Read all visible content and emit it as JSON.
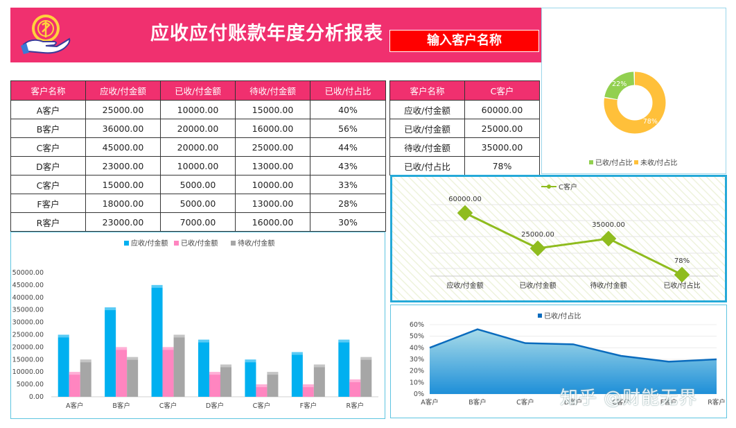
{
  "header": {
    "title": "应收应付账款年度分析报表",
    "customer_input": "输入客户名称"
  },
  "main_table": {
    "columns": [
      "客户名称",
      "应收/付金额",
      "已收/付金额",
      "待收/付金额",
      "已收/付占比"
    ],
    "rows": [
      [
        "A客户",
        "25000.00",
        "10000.00",
        "15000.00",
        "40%"
      ],
      [
        "B客户",
        "36000.00",
        "20000.00",
        "16000.00",
        "56%"
      ],
      [
        "C客户",
        "45000.00",
        "20000.00",
        "25000.00",
        "44%"
      ],
      [
        "D客户",
        "23000.00",
        "10000.00",
        "13000.00",
        "43%"
      ],
      [
        "C客户",
        "15000.00",
        "5000.00",
        "10000.00",
        "33%"
      ],
      [
        "F客户",
        "18000.00",
        "5000.00",
        "13000.00",
        "28%"
      ],
      [
        "R客户",
        "23000.00",
        "7000.00",
        "16000.00",
        "30%"
      ]
    ]
  },
  "side_table": {
    "columns": [
      "客户名称",
      "C客户"
    ],
    "rows": [
      [
        "应收/付金额",
        "60000.00"
      ],
      [
        "已收/付金额",
        "25000.00"
      ],
      [
        "待收/付金额",
        "35000.00"
      ],
      [
        "已收/付占比",
        "78%"
      ]
    ]
  },
  "colors": {
    "header": "#f0306f",
    "input": "#ff0000",
    "bar_receivable": "#00b0f0",
    "bar_received": "#ff85c0",
    "bar_pending": "#a6a6a6",
    "donut_received": "#92d050",
    "donut_unreceived": "#ffc03a",
    "line": "#8fbc1e",
    "area": "#0a6bbd"
  },
  "chart_data": [
    {
      "type": "bar",
      "categories": [
        "A客户",
        "B客户",
        "C客户",
        "D客户",
        "C客户",
        "F客户",
        "R客户"
      ],
      "series": [
        {
          "name": "应收/付金额",
          "values": [
            25000,
            36000,
            45000,
            23000,
            15000,
            18000,
            23000
          ]
        },
        {
          "name": "已收/付金额",
          "values": [
            10000,
            20000,
            20000,
            10000,
            5000,
            5000,
            7000
          ]
        },
        {
          "name": "待收/付金额",
          "values": [
            15000,
            16000,
            25000,
            13000,
            10000,
            13000,
            16000
          ]
        }
      ],
      "ylim": [
        0,
        50000
      ],
      "yticks": [
        "0.00",
        "5000.00",
        "10000.00",
        "15000.00",
        "20000.00",
        "25000.00",
        "30000.00",
        "35000.00",
        "40000.00",
        "45000.00",
        "50000.00"
      ],
      "legend": "top"
    },
    {
      "type": "pie",
      "categories": [
        "已收/付占比",
        "未收/付占比"
      ],
      "values": [
        22,
        78
      ],
      "labels": [
        "22%",
        "78%"
      ],
      "legend": "bottom"
    },
    {
      "type": "line",
      "categories": [
        "应收/付金额",
        "已收/付金额",
        "待收/付金额",
        "已收/付占比"
      ],
      "series": [
        {
          "name": "C客户",
          "values": [
            60000,
            25000,
            35000,
            0.78
          ]
        }
      ],
      "labels": [
        "60000.00",
        "25000.00",
        "35000.00",
        "78%"
      ],
      "legend": "top"
    },
    {
      "type": "area",
      "categories": [
        "A客户",
        "B客户",
        "C客户",
        "D客户",
        "C客户",
        "F客户",
        "R客户"
      ],
      "series": [
        {
          "name": "已收/付占比",
          "values": [
            40,
            56,
            44,
            43,
            33,
            28,
            30
          ]
        }
      ],
      "ylim": [
        0,
        60
      ],
      "yticks": [
        "0%",
        "10%",
        "20%",
        "30%",
        "40%",
        "50%",
        "60%"
      ],
      "legend": "top"
    }
  ],
  "watermark": "知乎 @财能无界"
}
